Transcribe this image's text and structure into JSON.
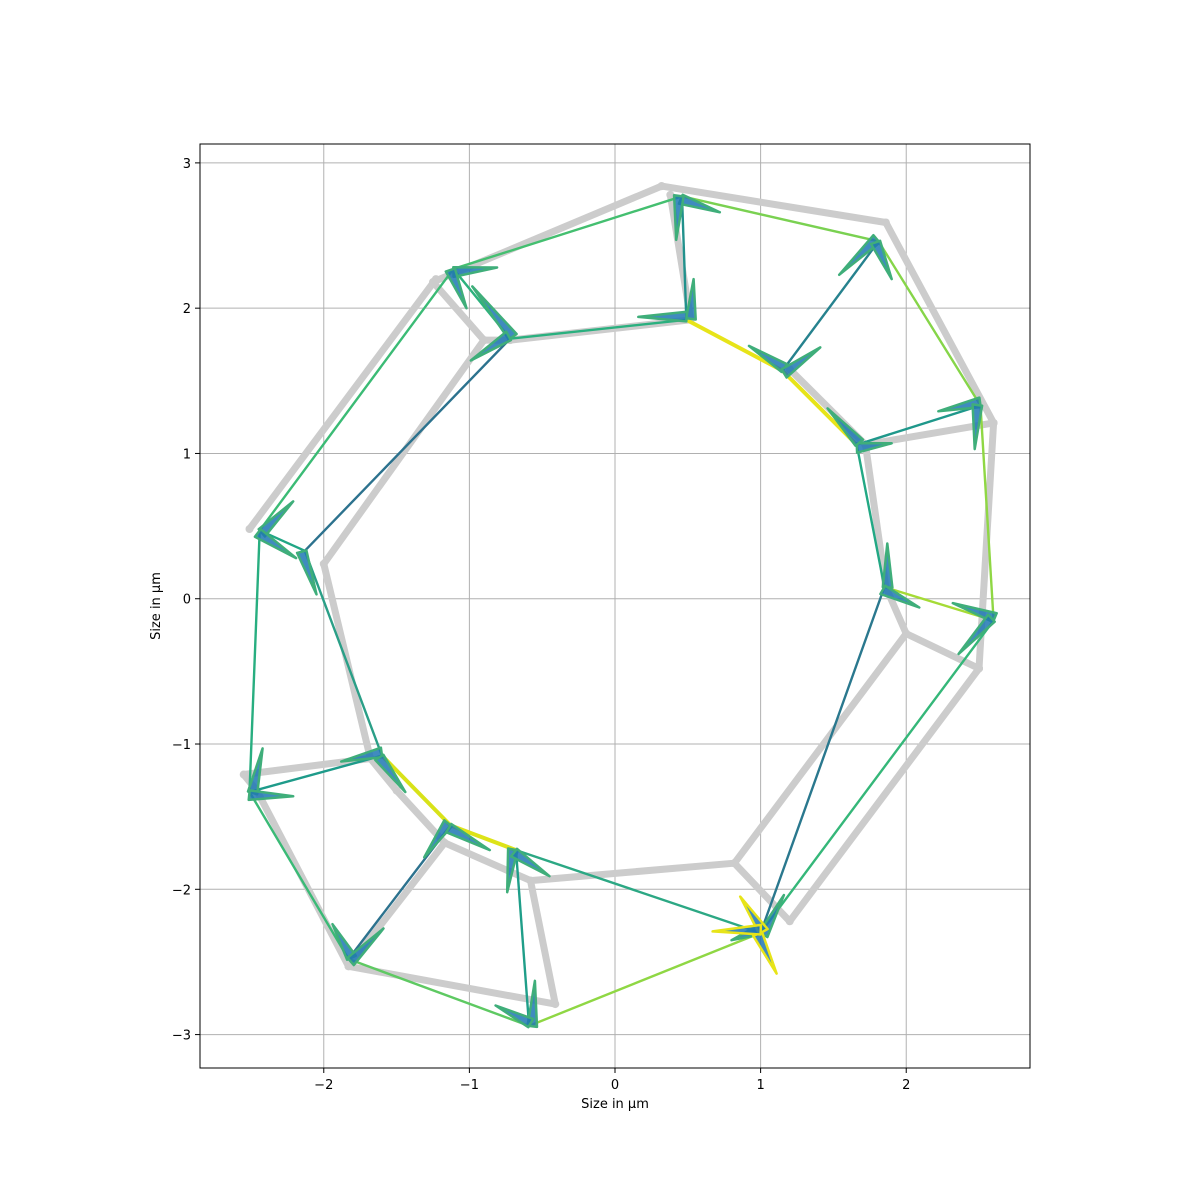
{
  "chart_data": {
    "type": "line",
    "title": "",
    "xlabel": "Size in µm",
    "ylabel": "Size in µm",
    "xlim": [
      -2.85,
      2.85
    ],
    "ylim": [
      -3.23,
      3.13
    ],
    "x_ticks": [
      -2,
      -1,
      0,
      1,
      2
    ],
    "y_ticks": [
      -3,
      -2,
      -1,
      0,
      1,
      2,
      3
    ],
    "x_tick_labels": [
      "−2",
      "−1",
      "0",
      "1",
      "2"
    ],
    "y_tick_labels": [
      "−3",
      "−2",
      "−1",
      "0",
      "1",
      "2",
      "3"
    ],
    "grid": true,
    "legend": "none",
    "reference_color": "#cccccc",
    "arrow_color": "#1f77b4",
    "reference_polylines": [
      [
        [
          0.32,
          2.84
        ],
        [
          1.86,
          2.59
        ],
        [
          2.6,
          1.21
        ],
        [
          2.5,
          -0.48
        ],
        [
          1.2,
          -2.22
        ],
        [
          0.82,
          -1.82
        ],
        [
          -0.58,
          -1.94
        ],
        [
          -0.41,
          -2.79
        ],
        [
          -1.83,
          -2.53
        ],
        [
          -2.46,
          -1.32
        ],
        [
          -2.55,
          -1.21
        ],
        [
          -1.68,
          -1.1
        ],
        [
          -2.0,
          0.24
        ],
        [
          -0.9,
          1.78
        ],
        [
          -1.25,
          2.18
        ],
        [
          0.32,
          2.84
        ]
      ],
      [
        [
          -2.51,
          0.48
        ],
        [
          -1.23,
          2.2
        ]
      ],
      [
        [
          -0.9,
          1.78
        ],
        [
          -0.72,
          1.78
        ],
        [
          0.52,
          1.92
        ],
        [
          0.38,
          2.78
        ]
      ],
      [
        [
          1.2,
          1.58
        ],
        [
          1.72,
          1.06
        ],
        [
          2.6,
          1.21
        ]
      ],
      [
        [
          1.72,
          1.06
        ],
        [
          1.86,
          0.08
        ],
        [
          2.0,
          -0.24
        ],
        [
          2.5,
          -0.48
        ]
      ],
      [
        [
          0.82,
          -1.82
        ],
        [
          2.0,
          -0.24
        ]
      ],
      [
        [
          -1.68,
          -1.1
        ],
        [
          -1.5,
          -1.32
        ],
        [
          -1.17,
          -1.68
        ],
        [
          -0.58,
          -1.94
        ]
      ],
      [
        [
          -1.83,
          -2.53
        ],
        [
          -1.17,
          -1.68
        ]
      ]
    ],
    "cell_edges": [
      {
        "from": [
          0.46,
          2.77
        ],
        "to": [
          1.81,
          2.46
        ],
        "color": "#7ad151"
      },
      {
        "from": [
          1.81,
          2.46
        ],
        "to": [
          2.51,
          1.33
        ],
        "color": "#86d549"
      },
      {
        "from": [
          2.51,
          1.33
        ],
        "to": [
          2.6,
          -0.15
        ],
        "color": "#8fd744"
      },
      {
        "from": [
          2.6,
          -0.15
        ],
        "to": [
          1.85,
          0.08
        ],
        "color": "#a5db36"
      },
      {
        "from": [
          2.6,
          -0.15
        ],
        "to": [
          1.0,
          -2.3
        ],
        "color": "#35b779"
      },
      {
        "from": [
          1.0,
          -2.3
        ],
        "to": [
          1.85,
          0.08
        ],
        "color": "#2a788e"
      },
      {
        "from": [
          1.85,
          0.08
        ],
        "to": [
          1.66,
          1.06
        ],
        "color": "#22a884"
      },
      {
        "from": [
          1.66,
          1.06
        ],
        "to": [
          2.51,
          1.33
        ],
        "color": "#1f988b"
      },
      {
        "from": [
          1.66,
          1.06
        ],
        "to": [
          1.15,
          1.57
        ],
        "color": "#e7e419"
      },
      {
        "from": [
          1.15,
          1.57
        ],
        "to": [
          1.81,
          2.46
        ],
        "color": "#26828e"
      },
      {
        "from": [
          1.15,
          1.57
        ],
        "to": [
          0.49,
          1.92
        ],
        "color": "#e7e419"
      },
      {
        "from": [
          0.49,
          1.92
        ],
        "to": [
          0.46,
          2.77
        ],
        "color": "#21918c"
      },
      {
        "from": [
          0.49,
          1.92
        ],
        "to": [
          -0.72,
          1.79
        ],
        "color": "#2ab07f"
      },
      {
        "from": [
          -0.72,
          1.79
        ],
        "to": [
          -1.11,
          2.27
        ],
        "color": "#2db27d"
      },
      {
        "from": [
          -1.11,
          2.27
        ],
        "to": [
          0.46,
          2.77
        ],
        "color": "#44bf70"
      },
      {
        "from": [
          -1.11,
          2.27
        ],
        "to": [
          -2.44,
          0.47
        ],
        "color": "#3bbb75"
      },
      {
        "from": [
          -2.44,
          0.47
        ],
        "to": [
          -2.13,
          0.33
        ],
        "color": "#21a685"
      },
      {
        "from": [
          -2.13,
          0.33
        ],
        "to": [
          -0.72,
          1.79
        ],
        "color": "#2c728e"
      },
      {
        "from": [
          -2.13,
          0.33
        ],
        "to": [
          -1.6,
          -1.08
        ],
        "color": "#2a9f87"
      },
      {
        "from": [
          -1.6,
          -1.08
        ],
        "to": [
          -2.51,
          -1.33
        ],
        "color": "#1e9b8a"
      },
      {
        "from": [
          -2.51,
          -1.33
        ],
        "to": [
          -2.44,
          0.47
        ],
        "color": "#28ae80"
      },
      {
        "from": [
          -1.6,
          -1.08
        ],
        "to": [
          -1.13,
          -1.56
        ],
        "color": "#d8e219"
      },
      {
        "from": [
          -1.13,
          -1.56
        ],
        "to": [
          -1.83,
          -2.48
        ],
        "color": "#2c728e"
      },
      {
        "from": [
          -1.83,
          -2.48
        ],
        "to": [
          -2.51,
          -1.33
        ],
        "color": "#3aba76"
      },
      {
        "from": [
          -1.13,
          -1.56
        ],
        "to": [
          -0.68,
          -1.73
        ],
        "color": "#dde318"
      },
      {
        "from": [
          -0.68,
          -1.73
        ],
        "to": [
          -0.59,
          -2.94
        ],
        "color": "#1f9e89"
      },
      {
        "from": [
          -0.59,
          -2.94
        ],
        "to": [
          -1.83,
          -2.48
        ],
        "color": "#5ec962"
      },
      {
        "from": [
          -0.68,
          -1.73
        ],
        "to": [
          1.0,
          -2.3
        ],
        "color": "#2ca884"
      },
      {
        "from": [
          1.0,
          -2.3
        ],
        "to": [
          -0.59,
          -2.94
        ],
        "color": "#8fd744"
      }
    ],
    "arrows": [
      [
        0.46,
        2.77,
        0.72,
        2.66
      ],
      [
        0.46,
        2.77,
        0.42,
        2.47
      ],
      [
        0.5,
        1.93,
        0.54,
        2.2
      ],
      [
        0.49,
        1.92,
        0.16,
        1.94
      ],
      [
        1.15,
        1.57,
        0.92,
        1.74
      ],
      [
        1.15,
        1.57,
        1.41,
        1.73
      ],
      [
        1.81,
        2.46,
        1.54,
        2.23
      ],
      [
        1.81,
        2.46,
        1.9,
        2.2
      ],
      [
        1.66,
        1.06,
        1.9,
        1.07
      ],
      [
        1.66,
        1.06,
        1.46,
        1.31
      ],
      [
        2.51,
        1.33,
        2.22,
        1.29
      ],
      [
        2.51,
        1.33,
        2.47,
        1.03
      ],
      [
        1.85,
        0.08,
        1.87,
        0.38
      ],
      [
        1.85,
        0.08,
        2.09,
        -0.06
      ],
      [
        2.6,
        -0.15,
        2.32,
        -0.03
      ],
      [
        2.6,
        -0.15,
        2.36,
        -0.38
      ],
      [
        1.0,
        -2.3,
        1.16,
        -2.04
      ],
      [
        1.0,
        -2.3,
        0.8,
        -2.35
      ],
      [
        -0.72,
        1.79,
        -0.98,
        2.15
      ],
      [
        -0.72,
        1.79,
        -0.99,
        1.64
      ],
      [
        -1.11,
        2.27,
        -0.81,
        2.28
      ],
      [
        -1.11,
        2.27,
        -1.02,
        2.0
      ],
      [
        -2.44,
        0.47,
        -2.21,
        0.67
      ],
      [
        -2.44,
        0.47,
        -2.19,
        0.28
      ],
      [
        -2.13,
        0.33,
        -2.05,
        0.03
      ],
      [
        -1.6,
        -1.08,
        -1.88,
        -1.12
      ],
      [
        -1.6,
        -1.08,
        -1.44,
        -1.33
      ],
      [
        -2.51,
        -1.33,
        -2.42,
        -1.03
      ],
      [
        -2.51,
        -1.33,
        -2.21,
        -1.36
      ],
      [
        -1.13,
        -1.56,
        -1.31,
        -1.78
      ],
      [
        -1.13,
        -1.56,
        -0.86,
        -1.73
      ],
      [
        -0.68,
        -1.73,
        -0.74,
        -2.02
      ],
      [
        -0.68,
        -1.73,
        -0.45,
        -1.91
      ],
      [
        -1.83,
        -2.48,
        -1.94,
        -2.24
      ],
      [
        -1.83,
        -2.48,
        -1.59,
        -2.27
      ],
      [
        -0.59,
        -2.94,
        -0.55,
        -2.63
      ],
      [
        -0.59,
        -2.94,
        -0.82,
        -2.8
      ]
    ],
    "yellow_spokes": [
      [
        1.0,
        -2.3,
        0.86,
        -2.05
      ],
      [
        1.0,
        -2.3,
        1.11,
        -2.58
      ],
      [
        1.0,
        -2.3,
        0.67,
        -2.29
      ]
    ]
  }
}
